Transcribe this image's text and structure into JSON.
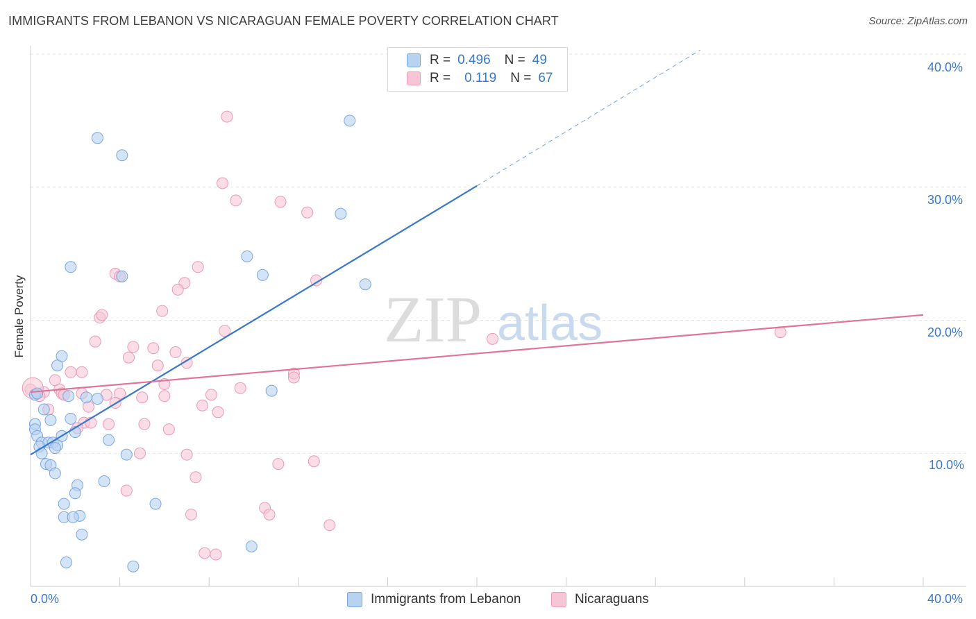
{
  "header": {
    "title": "IMMIGRANTS FROM LEBANON VS NICARAGUAN FEMALE POVERTY CORRELATION CHART",
    "source": "Source: ZipAtlas.com"
  },
  "watermark": {
    "zip": "ZIP",
    "atlas": "atlas"
  },
  "legend": {
    "rows": [
      {
        "r_label": "R =",
        "r_value": "0.496",
        "n_label": "N =",
        "n_value": "49"
      },
      {
        "r_label": "R =",
        "r_value": "0.119",
        "n_label": "N =",
        "n_value": "67"
      }
    ]
  },
  "colors": {
    "blue_fill": "#b8d2f2",
    "blue_stroke": "#7aa6dd",
    "blue_line": "#3a78c9",
    "pink_fill": "#f7c6d6",
    "pink_stroke": "#e99ab5",
    "pink_line": "#e0739b",
    "grid": "#e3e3e3",
    "tick_text": "#3a78c9"
  },
  "chart_data": {
    "type": "scatter",
    "title": "IMMIGRANTS FROM LEBANON VS NICARAGUAN FEMALE POVERTY CORRELATION CHART",
    "xlabel": "",
    "ylabel": "Female Poverty",
    "xlim": [
      0,
      40
    ],
    "ylim": [
      0,
      40
    ],
    "x_ticks": [
      "0.0%",
      "40.0%"
    ],
    "y_ticks": [
      "10.0%",
      "20.0%",
      "30.0%",
      "40.0%"
    ],
    "grid": true,
    "legend_position": "top-center",
    "series": [
      {
        "name": "Immigrants from Lebanon",
        "r": 0.496,
        "n": 49,
        "points": [
          [
            3.0,
            33.7
          ],
          [
            4.1,
            32.4
          ],
          [
            14.3,
            35.0
          ],
          [
            13.9,
            28.0
          ],
          [
            1.8,
            24.0
          ],
          [
            4.1,
            23.3
          ],
          [
            9.7,
            24.8
          ],
          [
            10.4,
            23.4
          ],
          [
            15.0,
            22.7
          ],
          [
            1.4,
            17.3
          ],
          [
            1.2,
            16.6
          ],
          [
            0.2,
            14.4
          ],
          [
            1.7,
            14.3
          ],
          [
            2.5,
            14.2
          ],
          [
            3.0,
            14.1
          ],
          [
            10.8,
            14.7
          ],
          [
            0.6,
            13.3
          ],
          [
            0.9,
            12.5
          ],
          [
            1.8,
            12.6
          ],
          [
            0.2,
            12.2
          ],
          [
            0.2,
            11.8
          ],
          [
            0.3,
            11.3
          ],
          [
            1.4,
            11.3
          ],
          [
            2.0,
            11.6
          ],
          [
            0.5,
            10.8
          ],
          [
            0.8,
            10.8
          ],
          [
            1.0,
            10.8
          ],
          [
            1.2,
            10.6
          ],
          [
            0.4,
            10.5
          ],
          [
            1.1,
            10.4
          ],
          [
            3.5,
            11.0
          ],
          [
            0.5,
            10.0
          ],
          [
            4.3,
            9.9
          ],
          [
            0.7,
            9.2
          ],
          [
            0.9,
            9.1
          ],
          [
            1.1,
            8.5
          ],
          [
            2.1,
            7.6
          ],
          [
            3.3,
            7.9
          ],
          [
            2.0,
            7.0
          ],
          [
            1.5,
            6.2
          ],
          [
            5.6,
            6.2
          ],
          [
            2.2,
            5.3
          ],
          [
            1.5,
            5.2
          ],
          [
            1.9,
            5.2
          ],
          [
            2.3,
            3.9
          ],
          [
            9.9,
            3.0
          ],
          [
            1.6,
            1.8
          ],
          [
            4.6,
            1.5
          ],
          [
            0.3,
            14.5
          ]
        ]
      },
      {
        "name": "Nicaraguans",
        "r": 0.119,
        "n": 67,
        "points": [
          [
            8.8,
            35.3
          ],
          [
            8.6,
            30.3
          ],
          [
            9.2,
            29.0
          ],
          [
            11.2,
            28.9
          ],
          [
            12.4,
            28.1
          ],
          [
            7.5,
            24.0
          ],
          [
            3.8,
            23.5
          ],
          [
            4.0,
            23.3
          ],
          [
            12.8,
            23.0
          ],
          [
            6.9,
            22.8
          ],
          [
            6.6,
            22.3
          ],
          [
            3.1,
            20.2
          ],
          [
            3.2,
            20.4
          ],
          [
            5.9,
            20.7
          ],
          [
            8.7,
            19.2
          ],
          [
            33.6,
            19.1
          ],
          [
            20.7,
            18.6
          ],
          [
            2.9,
            18.4
          ],
          [
            4.6,
            18.0
          ],
          [
            5.5,
            17.9
          ],
          [
            6.5,
            17.6
          ],
          [
            4.4,
            17.2
          ],
          [
            7.0,
            16.8
          ],
          [
            5.7,
            16.6
          ],
          [
            1.8,
            16.1
          ],
          [
            2.3,
            16.1
          ],
          [
            11.8,
            16.0
          ],
          [
            11.8,
            15.7
          ],
          [
            1.1,
            15.5
          ],
          [
            6.0,
            15.2
          ],
          [
            9.4,
            14.9
          ],
          [
            1.3,
            14.8
          ],
          [
            0.0,
            14.8
          ],
          [
            0.6,
            14.6
          ],
          [
            0.4,
            14.3
          ],
          [
            1.4,
            14.5
          ],
          [
            1.5,
            14.4
          ],
          [
            2.3,
            14.5
          ],
          [
            3.4,
            14.4
          ],
          [
            5.0,
            14.2
          ],
          [
            6.0,
            14.3
          ],
          [
            8.1,
            14.4
          ],
          [
            4.0,
            14.5
          ],
          [
            3.8,
            13.8
          ],
          [
            2.6,
            13.5
          ],
          [
            7.7,
            13.6
          ],
          [
            0.8,
            13.3
          ],
          [
            8.4,
            13.1
          ],
          [
            2.4,
            12.3
          ],
          [
            2.7,
            12.3
          ],
          [
            3.5,
            12.2
          ],
          [
            5.1,
            12.2
          ],
          [
            2.1,
            11.9
          ],
          [
            6.2,
            11.8
          ],
          [
            4.9,
            10.0
          ],
          [
            7.0,
            9.9
          ],
          [
            12.7,
            9.4
          ],
          [
            11.1,
            9.2
          ],
          [
            7.4,
            8.2
          ],
          [
            4.3,
            7.2
          ],
          [
            10.5,
            5.9
          ],
          [
            7.2,
            5.4
          ],
          [
            10.7,
            5.4
          ],
          [
            13.4,
            4.6
          ],
          [
            7.8,
            2.5
          ],
          [
            8.3,
            2.4
          ],
          [
            0.1,
            14.9
          ]
        ]
      }
    ],
    "trend_lines": [
      {
        "series": "Immigrants from Lebanon",
        "x0": 0.0,
        "y0": 9.9,
        "x1": 20.0,
        "y1": 30.1,
        "dashed_to_x": 30.0,
        "dashed_to_y": 40.3
      },
      {
        "series": "Nicaraguans",
        "x0": 0.0,
        "y0": 14.6,
        "x1": 40.0,
        "y1": 20.4
      }
    ]
  }
}
